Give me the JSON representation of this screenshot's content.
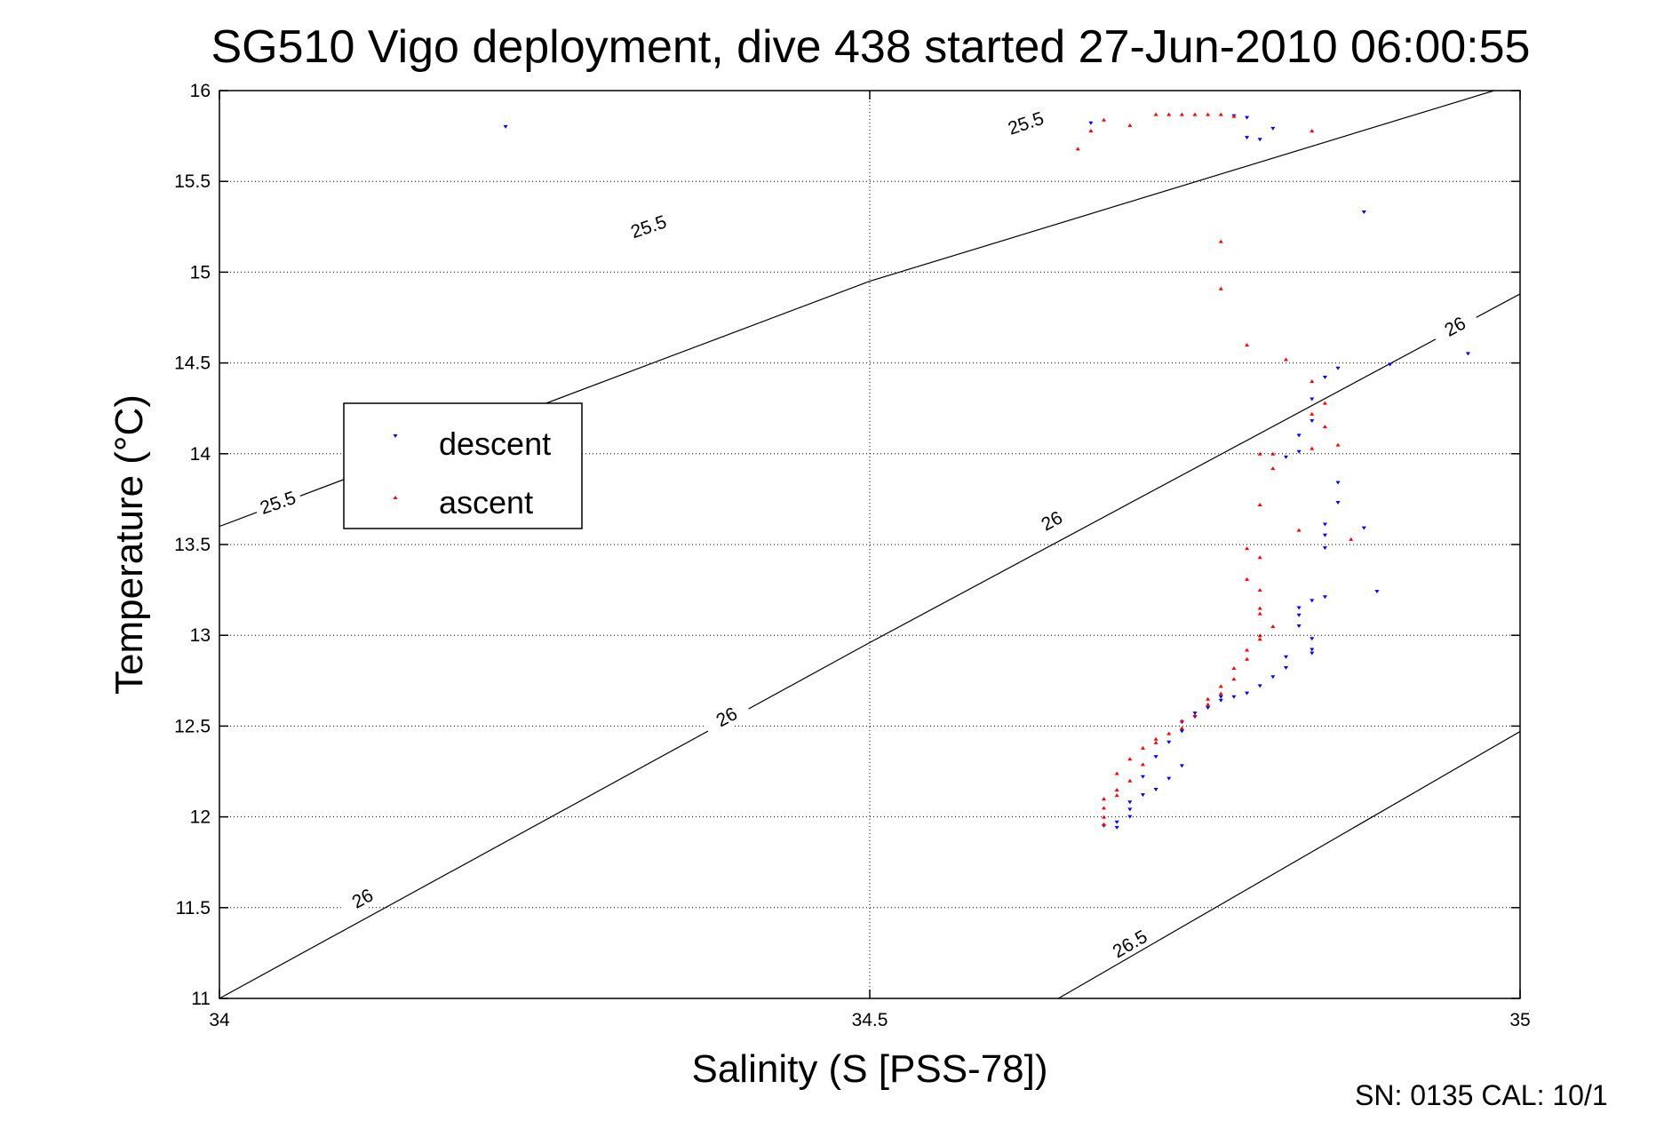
{
  "footer_text": "SN: 0135  CAL: 10/1",
  "chart_data": {
    "type": "scatter",
    "title": "SG510 Vigo deployment, dive 438 started 27-Jun-2010 06:00:55",
    "xlabel": "Salinity (S [PSS-78])",
    "ylabel": "Temperature (°C)",
    "xlim": [
      34,
      35
    ],
    "ylim": [
      11,
      16
    ],
    "x_ticks": [
      34,
      34.5,
      35
    ],
    "x_tick_labels": [
      "34",
      "34.5",
      "35"
    ],
    "y_ticks": [
      11,
      11.5,
      12,
      12.5,
      13,
      13.5,
      14,
      14.5,
      15,
      15.5,
      16
    ],
    "y_tick_labels": [
      "11",
      "11.5",
      "12",
      "12.5",
      "13",
      "13.5",
      "14",
      "14.5",
      "15",
      "15.5",
      "16"
    ],
    "grid": true,
    "legend_position": "left",
    "colors": {
      "descent": "#0000ff",
      "ascent": "#ff0000",
      "axes": "#000000",
      "grid": "#000000"
    },
    "contours": [
      {
        "label": "25.5",
        "points": [
          [
            34,
            13.6
          ],
          [
            34.5,
            14.95
          ],
          [
            34.98,
            16.0
          ]
        ],
        "label_positions": [
          [
            34.045,
            13.73
          ],
          [
            34.33,
            15.25
          ],
          [
            34.62,
            15.82
          ]
        ]
      },
      {
        "label": "26",
        "points": [
          [
            34,
            11.0
          ],
          [
            34.5,
            12.96
          ],
          [
            35,
            14.88
          ]
        ],
        "label_positions": [
          [
            34.11,
            11.55
          ],
          [
            34.39,
            12.55
          ],
          [
            34.64,
            13.63
          ],
          [
            34.95,
            14.7
          ]
        ]
      },
      {
        "label": "26.5",
        "points": [
          [
            34.645,
            11.0
          ],
          [
            35,
            12.47
          ]
        ],
        "label_positions": [
          [
            34.7,
            11.3
          ]
        ]
      }
    ],
    "series": [
      {
        "name": "descent",
        "marker": "down-triangle",
        "points": [
          [
            34.22,
            15.8
          ],
          [
            34.67,
            15.82
          ],
          [
            34.78,
            15.86
          ],
          [
            34.79,
            15.85
          ],
          [
            34.81,
            15.79
          ],
          [
            34.79,
            15.74
          ],
          [
            34.8,
            15.73
          ],
          [
            34.88,
            15.33
          ],
          [
            34.96,
            14.55
          ],
          [
            34.9,
            14.49
          ],
          [
            34.86,
            14.47
          ],
          [
            34.85,
            14.42
          ],
          [
            34.84,
            14.3
          ],
          [
            34.84,
            14.18
          ],
          [
            34.83,
            14.1
          ],
          [
            34.83,
            14.01
          ],
          [
            34.82,
            13.98
          ],
          [
            34.86,
            13.84
          ],
          [
            34.86,
            13.73
          ],
          [
            34.85,
            13.61
          ],
          [
            34.88,
            13.59
          ],
          [
            34.85,
            13.55
          ],
          [
            34.85,
            13.48
          ],
          [
            34.89,
            13.24
          ],
          [
            34.85,
            13.21
          ],
          [
            34.84,
            13.19
          ],
          [
            34.83,
            13.15
          ],
          [
            34.83,
            13.11
          ],
          [
            34.83,
            13.05
          ],
          [
            34.84,
            12.98
          ],
          [
            34.84,
            12.92
          ],
          [
            34.84,
            12.9
          ],
          [
            34.82,
            12.88
          ],
          [
            34.82,
            12.82
          ],
          [
            34.81,
            12.77
          ],
          [
            34.8,
            12.72
          ],
          [
            34.79,
            12.68
          ],
          [
            34.78,
            12.66
          ],
          [
            34.77,
            12.64
          ],
          [
            34.77,
            12.66
          ],
          [
            34.76,
            12.6
          ],
          [
            34.75,
            12.57
          ],
          [
            34.75,
            12.55
          ],
          [
            34.74,
            12.52
          ],
          [
            34.74,
            12.47
          ],
          [
            34.73,
            12.41
          ],
          [
            34.72,
            12.33
          ],
          [
            34.74,
            12.28
          ],
          [
            34.71,
            12.22
          ],
          [
            34.73,
            12.21
          ],
          [
            34.72,
            12.15
          ],
          [
            34.71,
            12.12
          ],
          [
            34.7,
            12.08
          ],
          [
            34.7,
            12.04
          ],
          [
            34.7,
            12.0
          ],
          [
            34.69,
            11.97
          ],
          [
            34.68,
            11.95
          ],
          [
            34.69,
            11.94
          ]
        ]
      },
      {
        "name": "ascent",
        "marker": "up-triangle",
        "points": [
          [
            34.66,
            15.68
          ],
          [
            34.67,
            15.78
          ],
          [
            34.72,
            15.87
          ],
          [
            34.73,
            15.87
          ],
          [
            34.74,
            15.87
          ],
          [
            34.75,
            15.87
          ],
          [
            34.76,
            15.87
          ],
          [
            34.77,
            15.87
          ],
          [
            34.78,
            15.86
          ],
          [
            34.84,
            15.78
          ],
          [
            34.68,
            15.84
          ],
          [
            34.7,
            15.81
          ],
          [
            34.77,
            15.17
          ],
          [
            34.77,
            14.91
          ],
          [
            34.79,
            14.6
          ],
          [
            34.82,
            14.52
          ],
          [
            34.84,
            14.4
          ],
          [
            34.85,
            14.28
          ],
          [
            34.84,
            14.22
          ],
          [
            34.85,
            14.15
          ],
          [
            34.86,
            14.05
          ],
          [
            34.84,
            14.03
          ],
          [
            34.8,
            14.0
          ],
          [
            34.81,
            14.0
          ],
          [
            34.81,
            13.92
          ],
          [
            34.8,
            13.72
          ],
          [
            34.83,
            13.58
          ],
          [
            34.87,
            13.53
          ],
          [
            34.79,
            13.48
          ],
          [
            34.8,
            13.43
          ],
          [
            34.79,
            13.31
          ],
          [
            34.8,
            13.25
          ],
          [
            34.8,
            13.15
          ],
          [
            34.8,
            13.12
          ],
          [
            34.81,
            13.05
          ],
          [
            34.8,
            13.0
          ],
          [
            34.8,
            12.98
          ],
          [
            34.79,
            12.92
          ],
          [
            34.79,
            12.87
          ],
          [
            34.78,
            12.82
          ],
          [
            34.78,
            12.76
          ],
          [
            34.77,
            12.72
          ],
          [
            34.77,
            12.68
          ],
          [
            34.76,
            12.65
          ],
          [
            34.76,
            12.62
          ],
          [
            34.75,
            12.56
          ],
          [
            34.74,
            12.53
          ],
          [
            34.74,
            12.49
          ],
          [
            34.73,
            12.46
          ],
          [
            34.72,
            12.43
          ],
          [
            34.72,
            12.41
          ],
          [
            34.71,
            12.38
          ],
          [
            34.7,
            12.32
          ],
          [
            34.71,
            12.29
          ],
          [
            34.69,
            12.24
          ],
          [
            34.7,
            12.2
          ],
          [
            34.69,
            12.15
          ],
          [
            34.69,
            12.12
          ],
          [
            34.68,
            12.1
          ],
          [
            34.68,
            12.05
          ],
          [
            34.68,
            12.0
          ],
          [
            34.68,
            11.96
          ]
        ]
      }
    ]
  }
}
